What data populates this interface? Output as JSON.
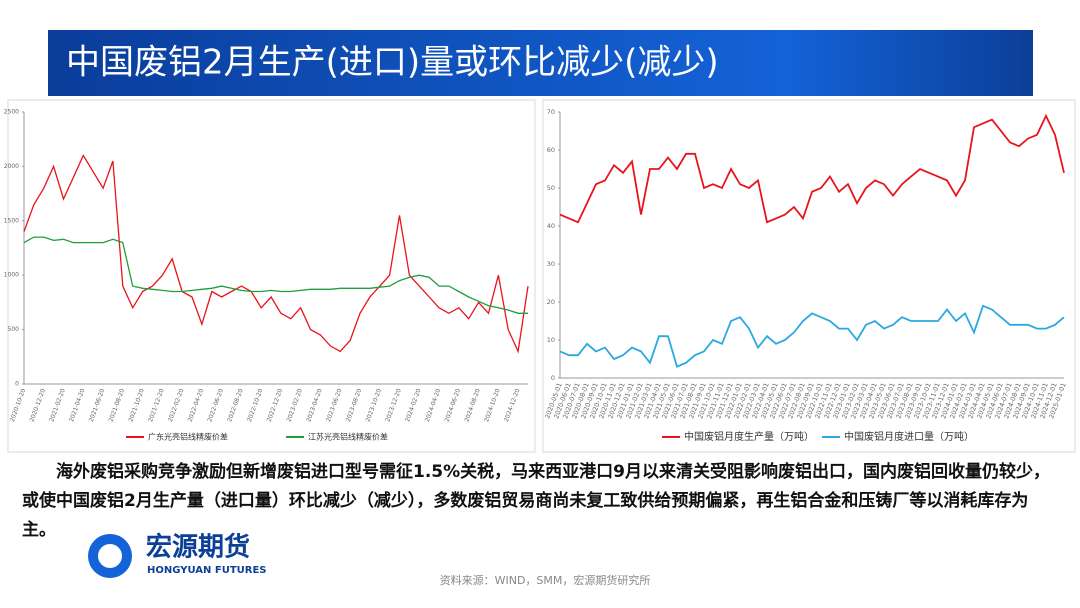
{
  "slide_title": "中国废铝2月生产(进口)量或环比减少(减少)",
  "chart_data": [
    {
      "type": "line",
      "categories": [
        "2020-10-20",
        null,
        "2020-12-20",
        null,
        "2021-02-20",
        null,
        "2021-04-20",
        null,
        "2021-06-20",
        null,
        "2021-08-20",
        null,
        "2021-10-20",
        null,
        "2021-12-20",
        null,
        "2022-02-20",
        null,
        "2022-04-20",
        null,
        "2022-06-20",
        null,
        "2022-08-20",
        null,
        "2022-10-20",
        null,
        "2022-12-20",
        null,
        "2023-02-20",
        null,
        "2023-04-20",
        null,
        "2023-06-20",
        null,
        "2023-08-20",
        null,
        "2023-10-20",
        null,
        "2023-12-20",
        null,
        "2024-02-20",
        null,
        "2024-04-20",
        null,
        "2024-06-20",
        null,
        "2024-08-20",
        null,
        "2024-10-20",
        null,
        "2024-12-20",
        null
      ],
      "series": [
        {
          "name": "广东光亮铝线精废价差",
          "color": "#e8141b",
          "values": [
            1400,
            1650,
            1800,
            2000,
            1700,
            1900,
            2100,
            1950,
            1800,
            2050,
            900,
            700,
            850,
            900,
            1000,
            1150,
            850,
            800,
            550,
            850,
            800,
            850,
            900,
            850,
            700,
            800,
            650,
            600,
            700,
            500,
            450,
            350,
            300,
            400,
            650,
            800,
            900,
            1000,
            1550,
            1000,
            900,
            800,
            700,
            650,
            700,
            600,
            750,
            650,
            1000,
            500,
            300,
            900
          ]
        },
        {
          "name": "江苏光亮铝线精废价差",
          "color": "#1f9e3a",
          "values": [
            1300,
            1350,
            1350,
            1320,
            1330,
            1300,
            1300,
            1300,
            1300,
            1330,
            1300,
            900,
            880,
            870,
            860,
            850,
            850,
            860,
            870,
            880,
            900,
            880,
            860,
            850,
            850,
            860,
            850,
            850,
            860,
            870,
            870,
            870,
            880,
            880,
            880,
            880,
            890,
            900,
            950,
            980,
            1000,
            980,
            900,
            900,
            850,
            800,
            760,
            720,
            700,
            680,
            650,
            650
          ]
        }
      ],
      "ylim": [
        0,
        2500
      ],
      "yticks": [
        0,
        500,
        1000,
        1500,
        2000,
        2500
      ]
    },
    {
      "type": "line",
      "categories": [
        "2020-05-01",
        "2020-06-01",
        "2020-07-01",
        "2020-08-01",
        "2020-09-01",
        "2020-10-01",
        "2020-11-01",
        "2020-12-01",
        "2021-01-01",
        "2021-02-01",
        "2021-03-01",
        "2021-04-01",
        "2021-05-01",
        "2021-06-01",
        "2021-07-01",
        "2021-08-01",
        "2021-09-01",
        "2021-10-01",
        "2021-11-01",
        "2021-12-01",
        "2022-01-01",
        "2022-02-01",
        "2022-03-01",
        "2022-04-01",
        "2022-05-01",
        "2022-06-01",
        "2022-07-01",
        "2022-08-01",
        "2022-09-01",
        "2022-10-01",
        "2022-11-01",
        "2022-12-01",
        "2023-01-01",
        "2023-02-01",
        "2023-03-01",
        "2023-04-01",
        "2023-05-01",
        "2023-06-01",
        "2023-07-01",
        "2023-08-01",
        "2023-09-01",
        "2023-10-01",
        "2023-11-01",
        "2023-12-01",
        "2024-01-01",
        "2024-02-01",
        "2024-03-01",
        "2024-04-01",
        "2024-05-01",
        "2024-06-01",
        "2024-07-01",
        "2024-08-01",
        "2024-09-01",
        "2024-10-01",
        "2024-11-01",
        "2024-12-01",
        "2025-01-01"
      ],
      "series": [
        {
          "name": "中国废铝月度生产量（万吨）",
          "color": "#e8141b",
          "values": [
            43,
            42,
            41,
            46,
            51,
            52,
            56,
            54,
            57,
            43,
            55,
            55,
            58,
            55,
            59,
            59,
            50,
            51,
            50,
            55,
            51,
            50,
            52,
            41,
            42,
            43,
            45,
            42,
            49,
            50,
            53,
            49,
            51,
            46,
            50,
            52,
            51,
            48,
            51,
            53,
            55,
            54,
            53,
            52,
            48,
            52,
            66,
            67,
            68,
            65,
            62,
            61,
            63,
            64,
            69,
            64,
            54
          ]
        },
        {
          "name": "中国废铝月度进口量（万吨）",
          "color": "#2ba8e0",
          "values": [
            7,
            6,
            6,
            9,
            7,
            8,
            5,
            6,
            8,
            7,
            4,
            11,
            11,
            3,
            4,
            6,
            7,
            10,
            9,
            15,
            16,
            13,
            8,
            11,
            9,
            10,
            12,
            15,
            17,
            16,
            15,
            13,
            13,
            10,
            14,
            15,
            13,
            14,
            16,
            15,
            15,
            15,
            15,
            18,
            15,
            17,
            12,
            19,
            18,
            16,
            14,
            14,
            14,
            13,
            13,
            14,
            16
          ]
        }
      ],
      "ylim": [
        0,
        70
      ],
      "yticks": [
        0,
        10,
        20,
        30,
        40,
        50,
        60,
        70
      ]
    }
  ],
  "paragraph": "海外废铝采购竞争激励但新增废铝进口型号需征1.5%关税，马来西亚港口9月以来清关受阻影响废铝出口，国内废铝回收量仍较少，或使中国废铝2月生产量（进口量）环比减少（减少），多数废铝贸易商尚未复工致供给预期偏紧，再生铝合金和压铸厂等以消耗库存为主。",
  "logo": {
    "name": "宏源期货",
    "english": "HONGYUAN FUTURES"
  },
  "source": "资料来源：WIND，SMM，宏源期货研究所"
}
